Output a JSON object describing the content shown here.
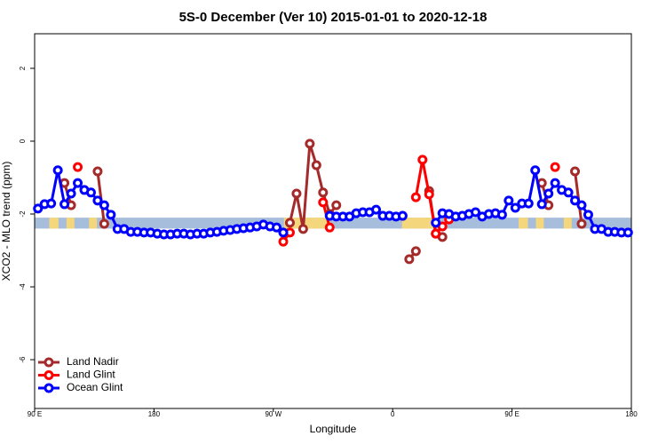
{
  "chart_data": {
    "type": "line",
    "title": "5S-0 December (Ver 10)   2015-01-01 to 2020-12-18",
    "x_label": "Longitude",
    "y_label": "XCO2 - MLO trend (ppm)",
    "xlim": [
      90,
      540
    ],
    "xticks": [
      {
        "value": 90,
        "label": "90 E"
      },
      180,
      {
        "value": 270,
        "label": "90 W"
      },
      {
        "value": 360,
        "label": "0"
      },
      {
        "value": 450,
        "label": "90 E"
      },
      {
        "value": 540,
        "label": "180"
      }
    ],
    "ylim": [
      -7.34,
      2.95
    ],
    "yticks": [
      2,
      0,
      -2,
      -4,
      -6
    ],
    "legend": "bottom-left",
    "band": {
      "range": [
        -2.4,
        -2.1
      ],
      "color": "#a6bddb"
    },
    "land_spans": {
      "color": "#f4d77c",
      "ranges": [
        [
          101,
          108
        ],
        [
          114,
          120
        ],
        [
          131,
          137
        ],
        [
          278,
          313
        ],
        [
          367,
          391
        ],
        [
          455,
          462
        ],
        [
          468,
          474
        ],
        [
          489,
          495
        ]
      ]
    },
    "x": [
      92.5,
      97.5,
      102.5,
      107.5,
      112.5,
      117.5,
      122.5,
      127.5,
      132.5,
      137.5,
      142.5,
      147.5,
      152.5,
      157.5,
      162.5,
      167.5,
      172.5,
      177.5,
      182.5,
      187.5,
      192.5,
      197.5,
      202.5,
      207.5,
      212.5,
      217.5,
      222.5,
      227.5,
      232.5,
      237.5,
      242.5,
      247.5,
      252.5,
      257.5,
      262.5,
      267.5,
      272.5,
      277.5,
      282.5,
      287.5,
      292.5,
      297.5,
      302.5,
      307.5,
      312.5,
      317.5,
      322.5,
      327.5,
      332.5,
      337.5,
      342.5,
      347.5,
      352.5,
      357.5,
      362.5,
      367.5,
      372.5,
      377.5,
      382.5,
      387.5,
      392.5,
      397.5,
      402.5,
      407.5,
      412.5,
      417.5,
      422.5,
      427.5,
      432.5,
      437.5,
      442.5,
      447.5,
      452.5,
      457.5,
      462.5,
      467.5,
      472.5,
      477.5,
      482.5,
      487.5,
      492.5,
      497.5,
      502.5,
      507.5,
      512.5,
      517.5,
      522.5,
      527.5,
      532.5,
      537.5
    ],
    "series": [
      {
        "name": "Land Nadir",
        "color": "#a52a2a",
        "values": [
          null,
          null,
          null,
          null,
          -1.15,
          -1.76,
          null,
          null,
          null,
          -0.83,
          -2.27,
          null,
          null,
          null,
          null,
          null,
          null,
          null,
          null,
          null,
          null,
          null,
          null,
          null,
          null,
          null,
          null,
          null,
          null,
          null,
          null,
          null,
          null,
          null,
          null,
          null,
          null,
          null,
          -2.24,
          -1.44,
          -2.41,
          -0.07,
          -0.66,
          -1.41,
          -2.0,
          -1.76,
          null,
          null,
          null,
          null,
          null,
          null,
          null,
          null,
          null,
          null,
          -3.24,
          -3.02,
          null,
          -1.37,
          -2.54,
          -2.63,
          null,
          null,
          null,
          null,
          null,
          null,
          null,
          null,
          null,
          null,
          null,
          null,
          null,
          null,
          -1.15,
          -1.76,
          null,
          null,
          null,
          -0.83,
          -2.27,
          null,
          null,
          null,
          null,
          null,
          null,
          null
        ]
      },
      {
        "name": "Land Glint",
        "color": "#ff0000",
        "values": [
          null,
          null,
          null,
          null,
          null,
          null,
          -0.71,
          null,
          null,
          null,
          null,
          null,
          null,
          null,
          null,
          null,
          null,
          null,
          null,
          null,
          null,
          null,
          null,
          null,
          null,
          null,
          null,
          null,
          null,
          null,
          null,
          null,
          null,
          null,
          null,
          null,
          null,
          -2.76,
          -2.51,
          null,
          null,
          null,
          null,
          -1.68,
          -2.37,
          null,
          null,
          null,
          null,
          null,
          null,
          null,
          null,
          null,
          null,
          null,
          null,
          -1.54,
          -0.51,
          -1.46,
          -2.54,
          -2.34,
          -2.15,
          null,
          null,
          null,
          null,
          null,
          null,
          null,
          null,
          null,
          null,
          null,
          null,
          null,
          null,
          null,
          -0.71,
          null,
          null,
          null,
          null,
          null,
          null,
          null,
          null,
          null,
          null,
          null
        ]
      },
      {
        "name": "Ocean Glint",
        "color": "#0000ff",
        "values": [
          -1.85,
          -1.73,
          -1.71,
          -0.8,
          -1.73,
          -1.44,
          -1.15,
          -1.34,
          -1.41,
          -1.63,
          -1.76,
          -2.02,
          -2.41,
          -2.41,
          -2.49,
          -2.49,
          -2.51,
          -2.51,
          -2.54,
          -2.56,
          -2.56,
          -2.54,
          -2.54,
          -2.56,
          -2.54,
          -2.54,
          -2.51,
          -2.49,
          -2.46,
          -2.44,
          -2.41,
          -2.39,
          -2.37,
          -2.34,
          -2.29,
          -2.34,
          -2.37,
          -2.51,
          null,
          null,
          null,
          null,
          null,
          null,
          -2.05,
          -2.07,
          -2.07,
          -2.07,
          -1.98,
          -1.95,
          -1.95,
          -1.88,
          -2.05,
          -2.05,
          -2.07,
          -2.05,
          null,
          null,
          null,
          null,
          -2.24,
          -1.98,
          -2.0,
          -2.07,
          -2.05,
          -2.0,
          -1.95,
          -2.07,
          -2.0,
          -1.98,
          -2.02,
          -1.63,
          -1.83,
          -1.71,
          -1.71,
          -0.8,
          -1.73,
          -1.44,
          -1.15,
          -1.34,
          -1.41,
          -1.63,
          -1.76,
          -2.02,
          -2.41,
          -2.41,
          -2.49,
          -2.49,
          -2.51,
          -2.51
        ]
      }
    ]
  }
}
